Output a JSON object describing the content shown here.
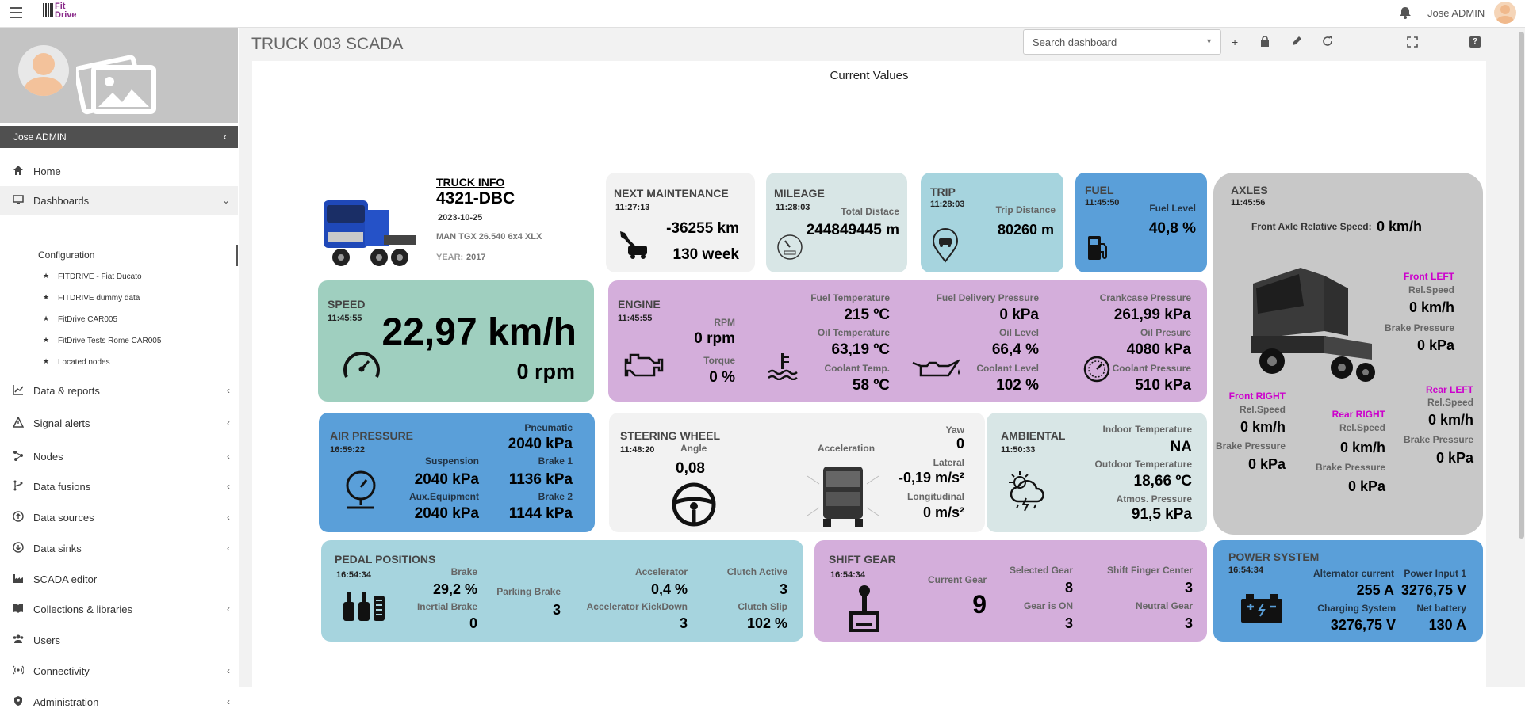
{
  "topbar": {
    "logo_text": "Fit Drive",
    "user_name": "Jose ADMIN"
  },
  "sidebar": {
    "user_name": "Jose ADMIN",
    "items": [
      {
        "label": "Home",
        "icon": "home-icon",
        "chevron": ""
      },
      {
        "label": "Dashboards",
        "icon": "dashboard-icon",
        "chevron": "⌄"
      },
      {
        "label": "Data & reports",
        "icon": "chart-icon",
        "chevron": "‹"
      },
      {
        "label": "Signal alerts",
        "icon": "warning-icon",
        "chevron": "‹"
      },
      {
        "label": "Nodes",
        "icon": "nodes-icon",
        "chevron": "‹"
      },
      {
        "label": "Data fusions",
        "icon": "fusion-icon",
        "chevron": "‹"
      },
      {
        "label": "Data sources",
        "icon": "source-icon",
        "chevron": "‹"
      },
      {
        "label": "Data sinks",
        "icon": "sink-icon",
        "chevron": "‹"
      },
      {
        "label": "SCADA editor",
        "icon": "factory-icon",
        "chevron": ""
      },
      {
        "label": "Collections & libraries",
        "icon": "book-icon",
        "chevron": "‹"
      },
      {
        "label": "Users",
        "icon": "users-icon",
        "chevron": ""
      },
      {
        "label": "Connectivity",
        "icon": "antenna-icon",
        "chevron": "‹"
      },
      {
        "label": "Administration",
        "icon": "admin-icon",
        "chevron": "‹"
      }
    ],
    "configuration": "Configuration",
    "dashboards": [
      "FITDRIVE - Fiat Ducato",
      "FITDRIVE dummy data",
      "FitDrive CAR005",
      "FitDrive Tests Rome CAR005",
      "Located nodes"
    ]
  },
  "header": {
    "title": "TRUCK 003 SCADA",
    "search_placeholder": "Search dashboard"
  },
  "dashboard": {
    "section_title": "Current Values",
    "truck_info": {
      "title": "TRUCK INFO",
      "plate": "4321-DBC",
      "date": "2023-10-25",
      "model": "MAN TGX 26.540 6x4 XLX",
      "year_label": "YEAR:",
      "year": "2017"
    },
    "maintenance": {
      "title": "NEXT MAINTENANCE",
      "time": "11:27:13",
      "km": "-36255 km",
      "weeks": "130 week"
    },
    "mileage": {
      "title": "MILEAGE",
      "time": "11:28:03",
      "label": "Total Distace",
      "value": "244849445 m"
    },
    "trip": {
      "title": "TRIP",
      "time": "11:28:03",
      "label": "Trip Distance",
      "value": "80260 m"
    },
    "fuel": {
      "title": "FUEL",
      "time": "11:45:50",
      "label": "Fuel Level",
      "value": "40,8 %"
    },
    "axles": {
      "title": "AXLES",
      "time": "11:45:56",
      "front_axle_label": "Front Axle Relative Speed:",
      "front_axle_value": "0 km/h",
      "front_left": {
        "name": "Front LEFT",
        "speed_label": "Rel.Speed",
        "speed": "0 km/h",
        "pressure_label": "Brake Pressure",
        "pressure": "0 kPa"
      },
      "front_right": {
        "name": "Front RIGHT",
        "speed_label": "Rel.Speed",
        "speed": "0 km/h",
        "pressure_label": "Brake Pressure",
        "pressure": "0 kPa"
      },
      "rear_right": {
        "name": "Rear RIGHT",
        "speed_label": "Rel.Speed",
        "speed": "0 km/h",
        "pressure_label": "Brake Pressure",
        "pressure": "0 kPa"
      },
      "rear_left": {
        "name": "Rear LEFT",
        "speed_label": "Rel.Speed",
        "speed": "0 km/h",
        "pressure_label": "Brake Pressure",
        "pressure": "0 kPa"
      }
    },
    "speed": {
      "title": "SPEED",
      "time": "11:45:55",
      "speed": "22,97 km/h",
      "rpm": "0 rpm"
    },
    "engine": {
      "title": "ENGINE",
      "time": "11:45:55",
      "rpm_label": "RPM",
      "rpm": "0 rpm",
      "torque_label": "Torque",
      "torque": "0 %",
      "fuel_temp_label": "Fuel Temperature",
      "fuel_temp": "215 ºC",
      "oil_temp_label": "Oil Temperature",
      "oil_temp": "63,19 ºC",
      "coolant_temp_label": "Coolant Temp.",
      "coolant_temp": "58 ºC",
      "fuel_del_label": "Fuel Delivery Pressure",
      "fuel_del": "0 kPa",
      "oil_level_label": "Oil Level",
      "oil_level": "66,4 %",
      "coolant_level_label": "Coolant Level",
      "coolant_level": "102 %",
      "crank_label": "Crankcase Pressure",
      "crank": "261,99 kPa",
      "oil_pres_label": "Oil Presure",
      "oil_pres": "4080 kPa",
      "coolant_pres_label": "Coolant Pressure",
      "coolant_pres": "510 kPa"
    },
    "air": {
      "title": "AIR PRESSURE",
      "time": "16:59:22",
      "pneumatic_label": "Pneumatic",
      "pneumatic": "2040 kPa",
      "susp_label": "Suspension",
      "susp": "2040 kPa",
      "brake1_label": "Brake 1",
      "brake1": "1136 kPa",
      "aux_label": "Aux.Equipment",
      "aux": "2040 kPa",
      "brake2_label": "Brake 2",
      "brake2": "1144 kPa"
    },
    "steering": {
      "title": "STEERING WHEEL",
      "time": "11:48:20",
      "angle_label": "Angle",
      "angle": "0,08",
      "accel_label": "Acceleration",
      "yaw_label": "Yaw",
      "yaw": "0",
      "lateral_label": "Lateral",
      "lateral": "-0,19 m/s²",
      "long_label": "Longitudinal",
      "long": "0 m/s²"
    },
    "ambiental": {
      "title": "AMBIENTAL",
      "time": "11:50:33",
      "indoor_label": "Indoor Temperature",
      "indoor": "NA",
      "outdoor_label": "Outdoor Temperature",
      "outdoor": "18,66 ºC",
      "atmos_label": "Atmos. Pressure",
      "atmos": "91,5 kPa"
    },
    "pedal": {
      "title": "PEDAL POSITIONS",
      "time": "16:54:34",
      "brake_label": "Brake",
      "brake": "29,2 %",
      "inertial_label": "Inertial Brake",
      "inertial": "0",
      "parking_label": "Parking Brake",
      "parking": "3",
      "accel_label": "Accelerator",
      "accel": "0,4 %",
      "kick_label": "Accelerator KickDown",
      "kick": "3",
      "clutch_active_label": "Clutch Active",
      "clutch_active": "3",
      "clutch_slip_label": "Clutch Slip",
      "clutch_slip": "102 %"
    },
    "gear": {
      "title": "SHIFT GEAR",
      "time": "16:54:34",
      "current_label": "Current Gear",
      "current": "9",
      "selected_label": "Selected Gear",
      "selected": "8",
      "gear_on_label": "Gear is ON",
      "gear_on": "3",
      "finger_label": "Shift Finger Center",
      "finger": "3",
      "neutral_label": "Neutral Gear",
      "neutral": "3"
    },
    "power": {
      "title": "POWER SYSTEM",
      "time": "16:54:34",
      "alt_label": "Alternator current",
      "alt": "255 A",
      "input_label": "Power Input 1",
      "input": "3276,75 V",
      "charging_label": "Charging System",
      "charging": "3276,75 V",
      "battery_label": "Net battery",
      "battery": "130 A"
    }
  },
  "colors": {
    "speed": "#9fcfbf",
    "engine": "#d4aedb",
    "maintenance": "#f2f2f2",
    "mileage": "#d8e6e6",
    "trip": "#a6d4de",
    "fuel": "#5a9fd9",
    "axles": "#c8c8c8",
    "air": "#5a9fd9",
    "steering": "#f2f2f2",
    "ambiental": "#d8e6e6",
    "pedal": "#a6d4de",
    "gear": "#d4aedb",
    "power": "#5a9fd9",
    "accent_magenta": "#cc00cc"
  }
}
